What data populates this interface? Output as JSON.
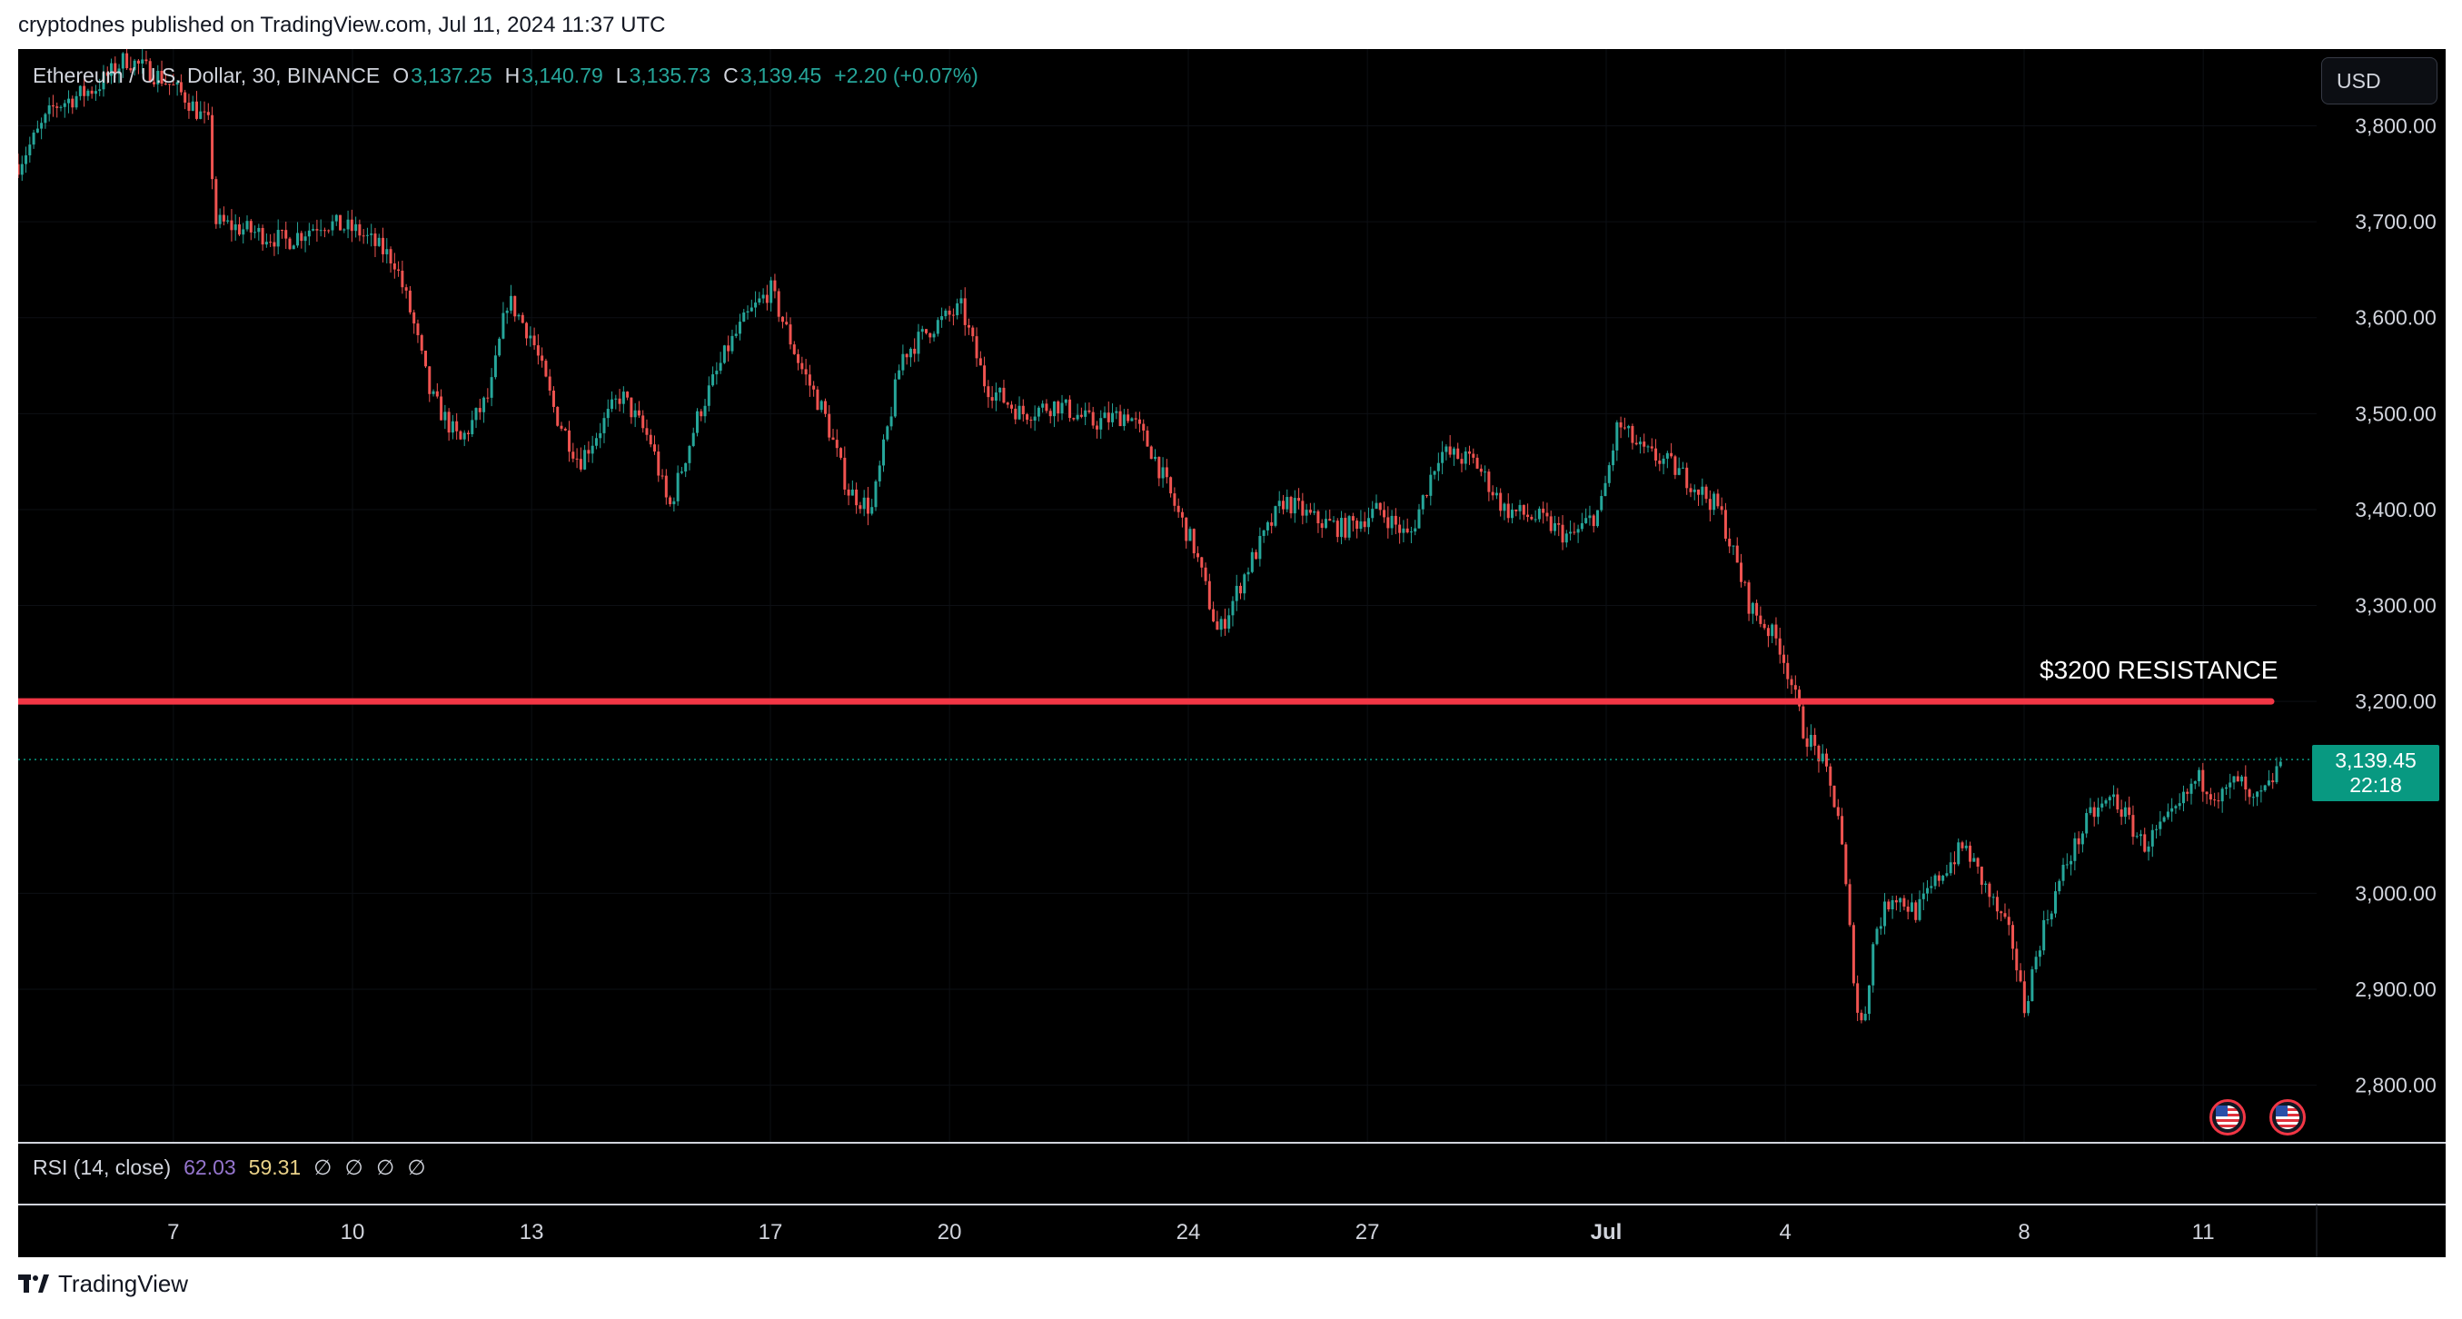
{
  "header": {
    "published_text": "cryptodnes published on TradingView.com, Jul 11, 2024 11:37 UTC"
  },
  "symbol": {
    "title": "Ethereum / U.S. Dollar, 30, BINANCE",
    "open_key": "O",
    "open": "3,137.25",
    "high_key": "H",
    "high": "3,140.79",
    "low_key": "L",
    "low": "3,135.73",
    "close_key": "C",
    "close": "3,139.45",
    "change": "+2.20 (+0.07%)"
  },
  "currency": {
    "label": "USD"
  },
  "price_tag": {
    "price": "3,139.45",
    "countdown": "22:18"
  },
  "annotation": {
    "resistance_label": "$3200 RESISTANCE"
  },
  "rsi": {
    "title": "RSI (14, close)",
    "value_a": "62.03",
    "value_b": "59.31",
    "nulls": "∅ ∅ ∅ ∅"
  },
  "footer": {
    "brand": "TradingView"
  },
  "colors": {
    "up": "#26a69a",
    "down": "#ef5350",
    "resistance": "#f23645",
    "background": "#000000",
    "price_tag": "#089981"
  },
  "icons": [
    "us-flag-event-icon",
    "tradingview-logo-icon"
  ],
  "chart_data": {
    "type": "line",
    "ylim": [
      2740,
      3880
    ],
    "y_ticks": [
      "3,800.00",
      "3,700.00",
      "3,600.00",
      "3,500.00",
      "3,400.00",
      "3,300.00",
      "3,200.00",
      "3,000.00",
      "2,900.00",
      "2,800.00"
    ],
    "y_tick_values": [
      3800,
      3700,
      3600,
      3500,
      3400,
      3300,
      3200,
      3000,
      2900,
      2800
    ],
    "x_ticks": [
      {
        "label": "7",
        "day": 7
      },
      {
        "label": "10",
        "day": 10
      },
      {
        "label": "13",
        "day": 13
      },
      {
        "label": "17",
        "day": 17
      },
      {
        "label": "20",
        "day": 20
      },
      {
        "label": "24",
        "day": 24
      },
      {
        "label": "27",
        "day": 27
      },
      {
        "label": "Jul",
        "day": 31
      },
      {
        "label": "4",
        "day": 34
      },
      {
        "label": "8",
        "day": 38
      },
      {
        "label": "11",
        "day": 41
      }
    ],
    "xlim": [
      4.4,
      42.9
    ],
    "resistance_level": 3200,
    "last_price": 3139.45,
    "series": [
      {
        "x": [
          4.4,
          5.0,
          5.7,
          6.2,
          6.8,
          7.2,
          7.6,
          7.7,
          8.3,
          8.9,
          9.5,
          10.1,
          10.7,
          11.0,
          11.3,
          11.8,
          12.3,
          12.6,
          13.0,
          13.4,
          13.8,
          14.1,
          14.5,
          15.0,
          15.3,
          15.8,
          16.3,
          16.6,
          17.0,
          17.5,
          17.9,
          18.3,
          18.7,
          19.2,
          19.7,
          20.2,
          20.6,
          21.2,
          21.8,
          22.4,
          23.0,
          23.4,
          23.8,
          24.1,
          24.5,
          25.0,
          25.6,
          26.1,
          26.6,
          27.2,
          27.7,
          28.2,
          28.8,
          29.3,
          29.9,
          30.4,
          30.9,
          31.2,
          31.6,
          32.0,
          32.4,
          32.9,
          33.4,
          33.9,
          34.1,
          34.3,
          34.6,
          34.9,
          35.2,
          35.3,
          35.5,
          35.8,
          36.2,
          36.6,
          37.0,
          37.4,
          37.8,
          38.0,
          38.3,
          38.7,
          39.1,
          39.5,
          40.0,
          40.5,
          40.9,
          41.3,
          41.6,
          41.8,
          42.1,
          42.3
        ],
        "close": [
          3760,
          3820,
          3840,
          3870,
          3850,
          3830,
          3800,
          3700,
          3690,
          3680,
          3700,
          3690,
          3660,
          3600,
          3520,
          3470,
          3520,
          3620,
          3580,
          3500,
          3450,
          3480,
          3520,
          3470,
          3400,
          3500,
          3570,
          3600,
          3630,
          3550,
          3500,
          3420,
          3400,
          3560,
          3590,
          3610,
          3530,
          3500,
          3510,
          3490,
          3500,
          3460,
          3400,
          3360,
          3270,
          3340,
          3410,
          3390,
          3380,
          3400,
          3370,
          3460,
          3450,
          3400,
          3390,
          3370,
          3400,
          3490,
          3460,
          3450,
          3430,
          3400,
          3300,
          3260,
          3220,
          3170,
          3140,
          3080,
          2880,
          2860,
          2960,
          3000,
          2980,
          3020,
          3050,
          3000,
          2950,
          2880,
          2960,
          3030,
          3080,
          3100,
          3050,
          3080,
          3120,
          3100,
          3120,
          3090,
          3110,
          3139.45
        ]
      }
    ]
  }
}
